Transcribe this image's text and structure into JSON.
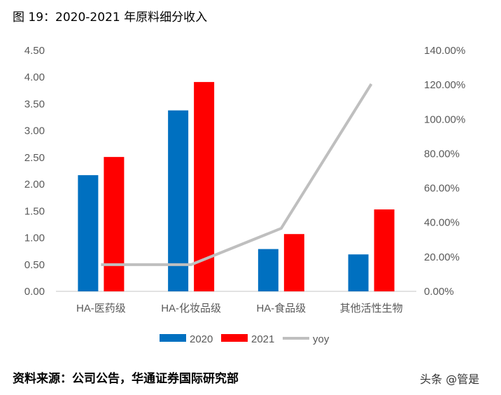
{
  "title": "图 19：2020-2021 年原料细分收入",
  "source": "资料来源：公司公告，华通证券国际研究部",
  "watermark": "头条 @管是",
  "chart_data": {
    "type": "bar",
    "categories": [
      "HA-医药级",
      "HA-化妆品级",
      "HA-食品级",
      "其他活性生物"
    ],
    "series": [
      {
        "name": "2020",
        "type": "bar",
        "axis": "left",
        "color": "#0070C0",
        "values": [
          2.17,
          3.38,
          0.79,
          0.69
        ]
      },
      {
        "name": "2021",
        "type": "bar",
        "axis": "left",
        "color": "#FF0000",
        "values": [
          2.51,
          3.91,
          1.07,
          1.53
        ]
      },
      {
        "name": "yoy",
        "type": "line",
        "axis": "right",
        "color": "#BFBFBF",
        "values": [
          15.5,
          15.5,
          36.6,
          120.5
        ]
      }
    ],
    "ylim": [
      0,
      4.5
    ],
    "yticks": [
      "0.00",
      "0.50",
      "1.00",
      "1.50",
      "2.00",
      "2.50",
      "3.00",
      "3.50",
      "4.00",
      "4.50"
    ],
    "y2lim": [
      0,
      140
    ],
    "y2ticks": [
      "0.00%",
      "20.00%",
      "40.00%",
      "60.00%",
      "80.00%",
      "100.00%",
      "120.00%",
      "140.00%"
    ],
    "legend": "bottom",
    "grid": false
  }
}
